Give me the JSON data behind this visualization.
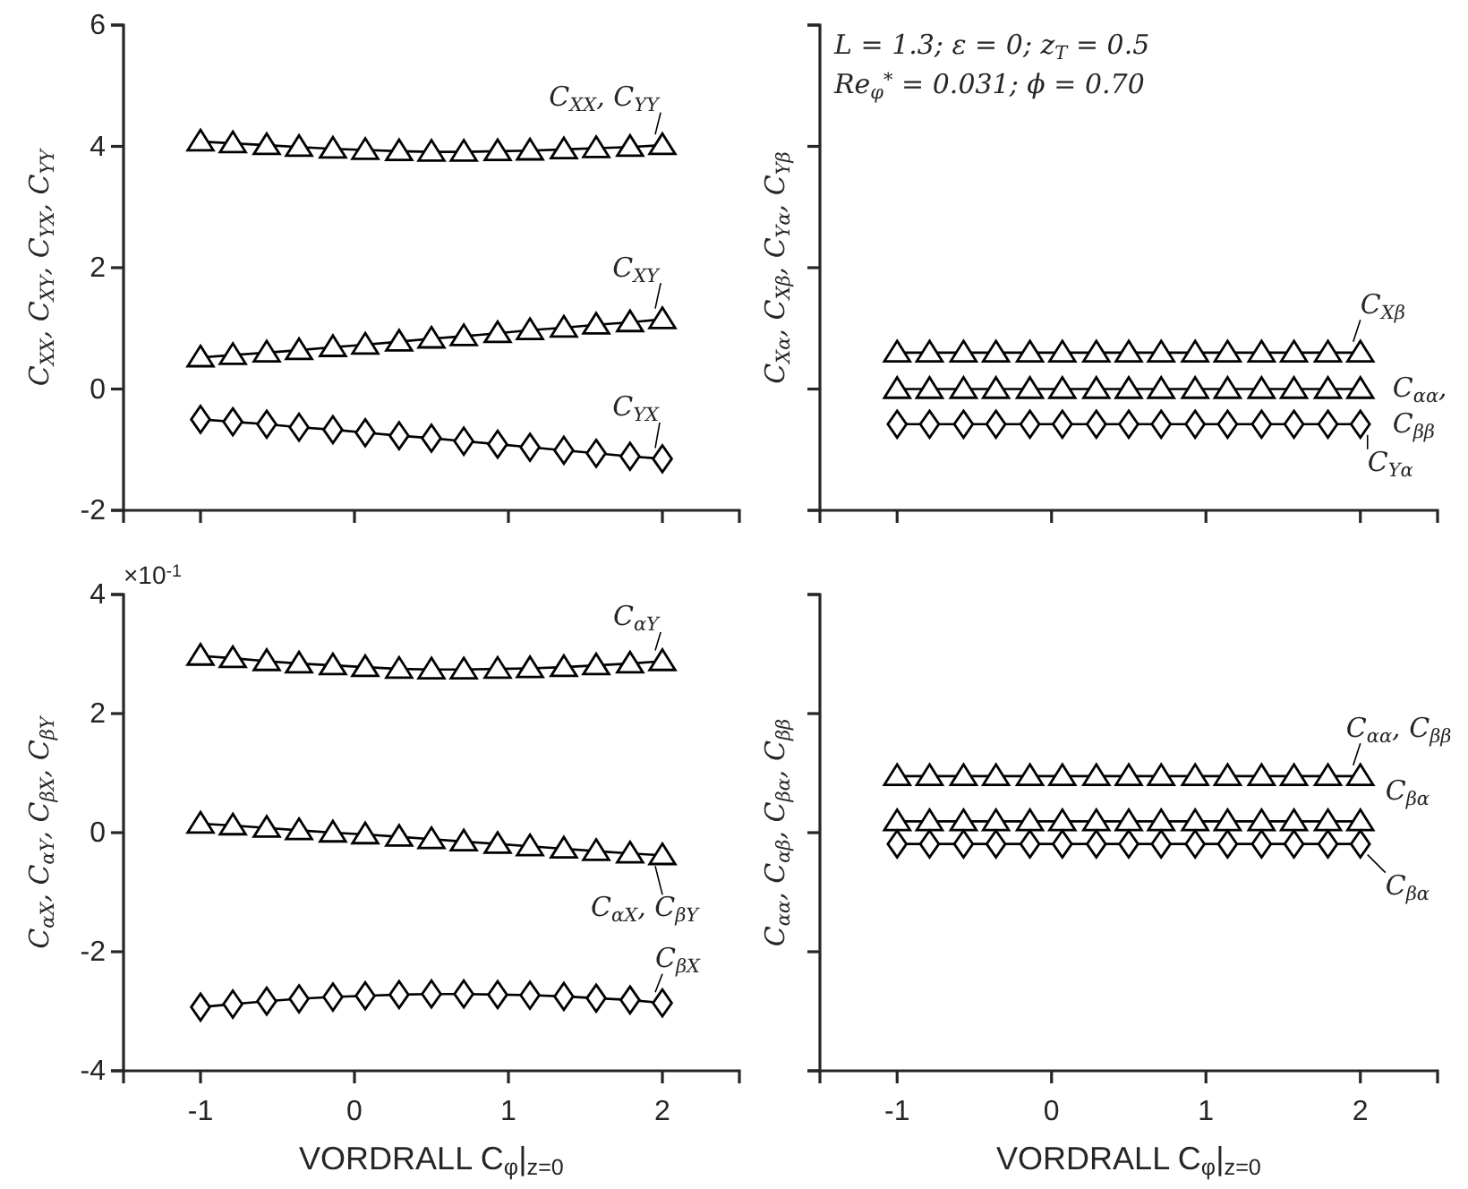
{
  "chart_data": [
    {
      "type": "line",
      "ylabel": "C$_{XX}$, C$_{XY}$, C$_{YX}$, C$_{YY}$",
      "x": [
        -1,
        -0.79,
        -0.57,
        -0.36,
        -0.14,
        0.07,
        0.29,
        0.5,
        0.71,
        0.93,
        1.14,
        1.36,
        1.57,
        1.79,
        2
      ],
      "xlim": [
        -1.5,
        2.5
      ],
      "xticks": [
        -1,
        0,
        1,
        2
      ],
      "ylim": [
        -2,
        6
      ],
      "yticks": [
        -2,
        0,
        2,
        4,
        6
      ],
      "tick_labels": "y",
      "series": [
        {
          "name": "C$_{XX}$, C$_{YY}$",
          "color": "#000000",
          "marker": "triangle",
          "values": [
            4.08,
            4.05,
            4.02,
            3.99,
            3.96,
            3.94,
            3.92,
            3.91,
            3.91,
            3.92,
            3.93,
            3.95,
            3.97,
            3.99,
            4.02
          ]
        },
        {
          "name": "C$_{XY}$",
          "color": "#000000",
          "marker": "triangle",
          "values": [
            0.52,
            0.56,
            0.6,
            0.64,
            0.69,
            0.73,
            0.78,
            0.83,
            0.87,
            0.92,
            0.97,
            1.01,
            1.06,
            1.1,
            1.15
          ]
        },
        {
          "name": "C$_{YX}$",
          "color": "#000000",
          "marker": "diamond",
          "values": [
            -0.5,
            -0.54,
            -0.58,
            -0.63,
            -0.67,
            -0.72,
            -0.77,
            -0.81,
            -0.86,
            -0.91,
            -0.96,
            -1.01,
            -1.06,
            -1.11,
            -1.15
          ]
        }
      ]
    },
    {
      "type": "line",
      "ylabel": "C$_{Xα}$, C$_{Xβ}$, C$_{Yα}$, C$_{Yβ}$",
      "x": [
        -1,
        -0.79,
        -0.57,
        -0.36,
        -0.14,
        0.07,
        0.29,
        0.5,
        0.71,
        0.93,
        1.14,
        1.36,
        1.57,
        1.79,
        2
      ],
      "xlim": [
        -1.5,
        2.5
      ],
      "xticks": [
        -1,
        0,
        1,
        2
      ],
      "ylim": [
        -2,
        6
      ],
      "yticks": [
        -2,
        0,
        2,
        4,
        6
      ],
      "tick_labels": false,
      "annotations": [
        "L = 1.3; ε = 0; z$_{T}$ = 0.5",
        "Re$_{φ}$$^{*}$ = 0.031; ϕ = 0.70"
      ],
      "series": [
        {
          "name": "C$_{Xβ}$",
          "color": "#000000",
          "marker": "triangle",
          "values": [
            0.6,
            0.6,
            0.6,
            0.6,
            0.6,
            0.6,
            0.6,
            0.6,
            0.6,
            0.6,
            0.6,
            0.6,
            0.6,
            0.6,
            0.6
          ]
        },
        {
          "name": "C$_{αα}$, C$_{ββ}$",
          "color": "#000000",
          "marker": "triangle",
          "values": [
            0,
            0,
            0,
            0,
            0,
            0,
            0,
            0,
            0,
            0,
            0,
            0,
            0,
            0,
            0
          ]
        },
        {
          "name": "C$_{Yα}$",
          "color": "#000000",
          "marker": "diamond",
          "values": [
            -0.58,
            -0.58,
            -0.58,
            -0.58,
            -0.58,
            -0.58,
            -0.58,
            -0.58,
            -0.58,
            -0.58,
            -0.58,
            -0.58,
            -0.58,
            -0.58,
            -0.58
          ]
        }
      ]
    },
    {
      "type": "line",
      "xlabel": "VORDRALL C$_{φ}$|$_{z=0}$",
      "ylabel": "C$_{αX}$, C$_{αY}$, C$_{βX}$, C$_{βY}$",
      "x": [
        -1,
        -0.79,
        -0.57,
        -0.36,
        -0.14,
        0.07,
        0.29,
        0.5,
        0.71,
        0.93,
        1.14,
        1.36,
        1.57,
        1.79,
        2
      ],
      "xlim": [
        -1.5,
        2.5
      ],
      "xticks": [
        -1,
        0,
        1,
        2
      ],
      "ylim": [
        -4,
        4
      ],
      "yticks": [
        -4,
        -2,
        0,
        2,
        4
      ],
      "annotations": [
        "×10$^{-1}$"
      ],
      "series": [
        {
          "name": "C$_{αY}$",
          "color": "#000000",
          "marker": "triangle",
          "values": [
            2.97,
            2.93,
            2.88,
            2.84,
            2.81,
            2.78,
            2.75,
            2.74,
            2.74,
            2.75,
            2.76,
            2.78,
            2.81,
            2.84,
            2.88
          ]
        },
        {
          "name": "C$_{αX}$, C$_{βY}$",
          "color": "#000000",
          "marker": "triangle",
          "values": [
            0.15,
            0.12,
            0.08,
            0.04,
            0.0,
            -0.03,
            -0.07,
            -0.11,
            -0.15,
            -0.19,
            -0.23,
            -0.27,
            -0.31,
            -0.35,
            -0.38
          ]
        },
        {
          "name": "C$_{βX}$",
          "color": "#000000",
          "marker": "diamond",
          "values": [
            -2.93,
            -2.88,
            -2.83,
            -2.79,
            -2.76,
            -2.74,
            -2.72,
            -2.71,
            -2.71,
            -2.72,
            -2.73,
            -2.75,
            -2.78,
            -2.81,
            -2.86
          ]
        }
      ]
    },
    {
      "type": "line",
      "xlabel": "VORDRALL C$_{φ}$|$_{z=0}$",
      "ylabel": "C$_{αα}$, C$_{αβ}$, C$_{βα}$, C$_{ββ}$",
      "x": [
        -1,
        -0.79,
        -0.57,
        -0.36,
        -0.14,
        0.07,
        0.29,
        0.5,
        0.71,
        0.93,
        1.14,
        1.36,
        1.57,
        1.79,
        2
      ],
      "xlim": [
        -1.5,
        2.5
      ],
      "xticks": [
        -1,
        0,
        1,
        2
      ],
      "ylim": [
        -4,
        4
      ],
      "yticks": [
        -4,
        -2,
        0,
        2,
        4
      ],
      "tick_labels": "x",
      "series": [
        {
          "name": "C$_{αα}$, C$_{ββ}$",
          "color": "#000000",
          "marker": "triangle",
          "values": [
            0.95,
            0.95,
            0.95,
            0.95,
            0.95,
            0.95,
            0.95,
            0.95,
            0.95,
            0.95,
            0.95,
            0.95,
            0.95,
            0.95,
            0.95
          ]
        },
        {
          "name": "C$_{βα}$",
          "color": "#000000",
          "marker": "triangle",
          "values": [
            0.19,
            0.19,
            0.19,
            0.19,
            0.19,
            0.19,
            0.19,
            0.19,
            0.19,
            0.19,
            0.19,
            0.19,
            0.19,
            0.19,
            0.19
          ]
        },
        {
          "name": "C$_{βα}$",
          "color": "#000000",
          "marker": "diamond",
          "values": [
            -0.19,
            -0.19,
            -0.19,
            -0.19,
            -0.19,
            -0.19,
            -0.19,
            -0.19,
            -0.19,
            -0.19,
            -0.19,
            -0.19,
            -0.19,
            -0.19,
            -0.19
          ]
        }
      ]
    }
  ]
}
